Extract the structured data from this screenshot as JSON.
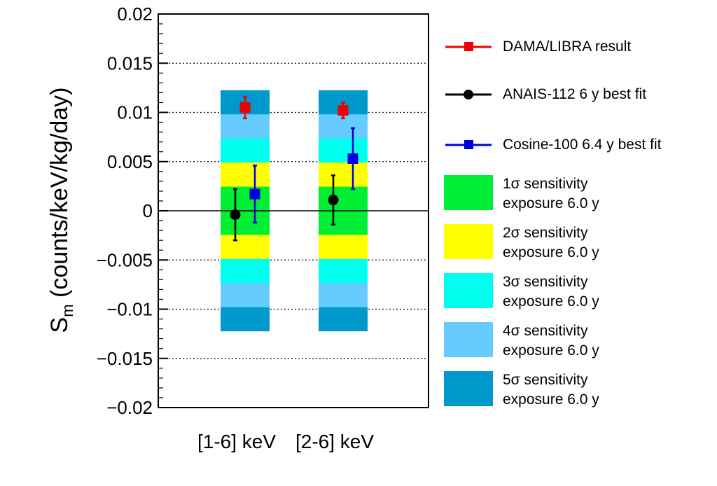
{
  "chart_data": {
    "type": "bar",
    "title": "",
    "xlabel": "",
    "ylabel": "S",
    "ylabel_sub": "m",
    "ylabel_units": "(counts/keV/kg/day)",
    "ylim": [
      -0.02,
      0.02
    ],
    "yticks": [
      0.02,
      0.015,
      0.01,
      0.005,
      0,
      -0.005,
      -0.01,
      -0.015,
      -0.02
    ],
    "ytick_labels": [
      "0.02",
      "0.015",
      "0.01",
      "0.005",
      "0",
      "−0.005",
      "−0.01",
      "−0.015",
      "−0.02"
    ],
    "grid": "dotted horizontal",
    "categories": [
      "[1-6] keV",
      "[2-6] keV"
    ],
    "bands": [
      {
        "name": "1σ sensitivity",
        "sigma": 1,
        "color": "#00ee33",
        "half_width": [
          0.00245,
          0.00245
        ]
      },
      {
        "name": "2σ sensitivity",
        "sigma": 2,
        "color": "#ffff00",
        "half_width": [
          0.0049,
          0.0049
        ]
      },
      {
        "name": "3σ sensitivity",
        "sigma": 3,
        "color": "#00ffee",
        "half_width": [
          0.00735,
          0.00735
        ]
      },
      {
        "name": "4σ sensitivity",
        "sigma": 4,
        "color": "#66ccff",
        "half_width": [
          0.0098,
          0.0098
        ]
      },
      {
        "name": "5σ sensitivity",
        "sigma": 5,
        "color": "#0099cc",
        "half_width": [
          0.01225,
          0.01225
        ]
      }
    ],
    "series": [
      {
        "name": "DAMA/LIBRA result",
        "color": "#ee0000",
        "marker": "square",
        "values": [
          0.0105,
          0.0102
        ],
        "errors": [
          0.0011,
          0.0008
        ],
        "offset": 0
      },
      {
        "name": "ANAIS-112 6 y best fit",
        "color": "#000000",
        "marker": "circle",
        "values": [
          -0.0004,
          0.0011
        ],
        "errors": [
          0.0026,
          0.0025
        ],
        "offset": -1
      },
      {
        "name": "Cosine-100 6.4 y best fit",
        "color": "#0000dd",
        "marker": "square",
        "values": [
          0.0017,
          0.0053
        ],
        "errors": [
          0.0029,
          0.0031
        ],
        "offset": 1
      }
    ]
  },
  "legend": {
    "dama": "DAMA/LIBRA result",
    "anais": "ANAIS-112 6 y best fit",
    "cosine": "Cosine-100 6.4 y best fit",
    "sigma1": "1σ sensitivity",
    "sigma2": "2σ sensitivity",
    "sigma3": "3σ sensitivity",
    "sigma4": "4σ sensitivity",
    "sigma5": "5σ sensitivity",
    "exposure": "exposure 6.0 y"
  }
}
